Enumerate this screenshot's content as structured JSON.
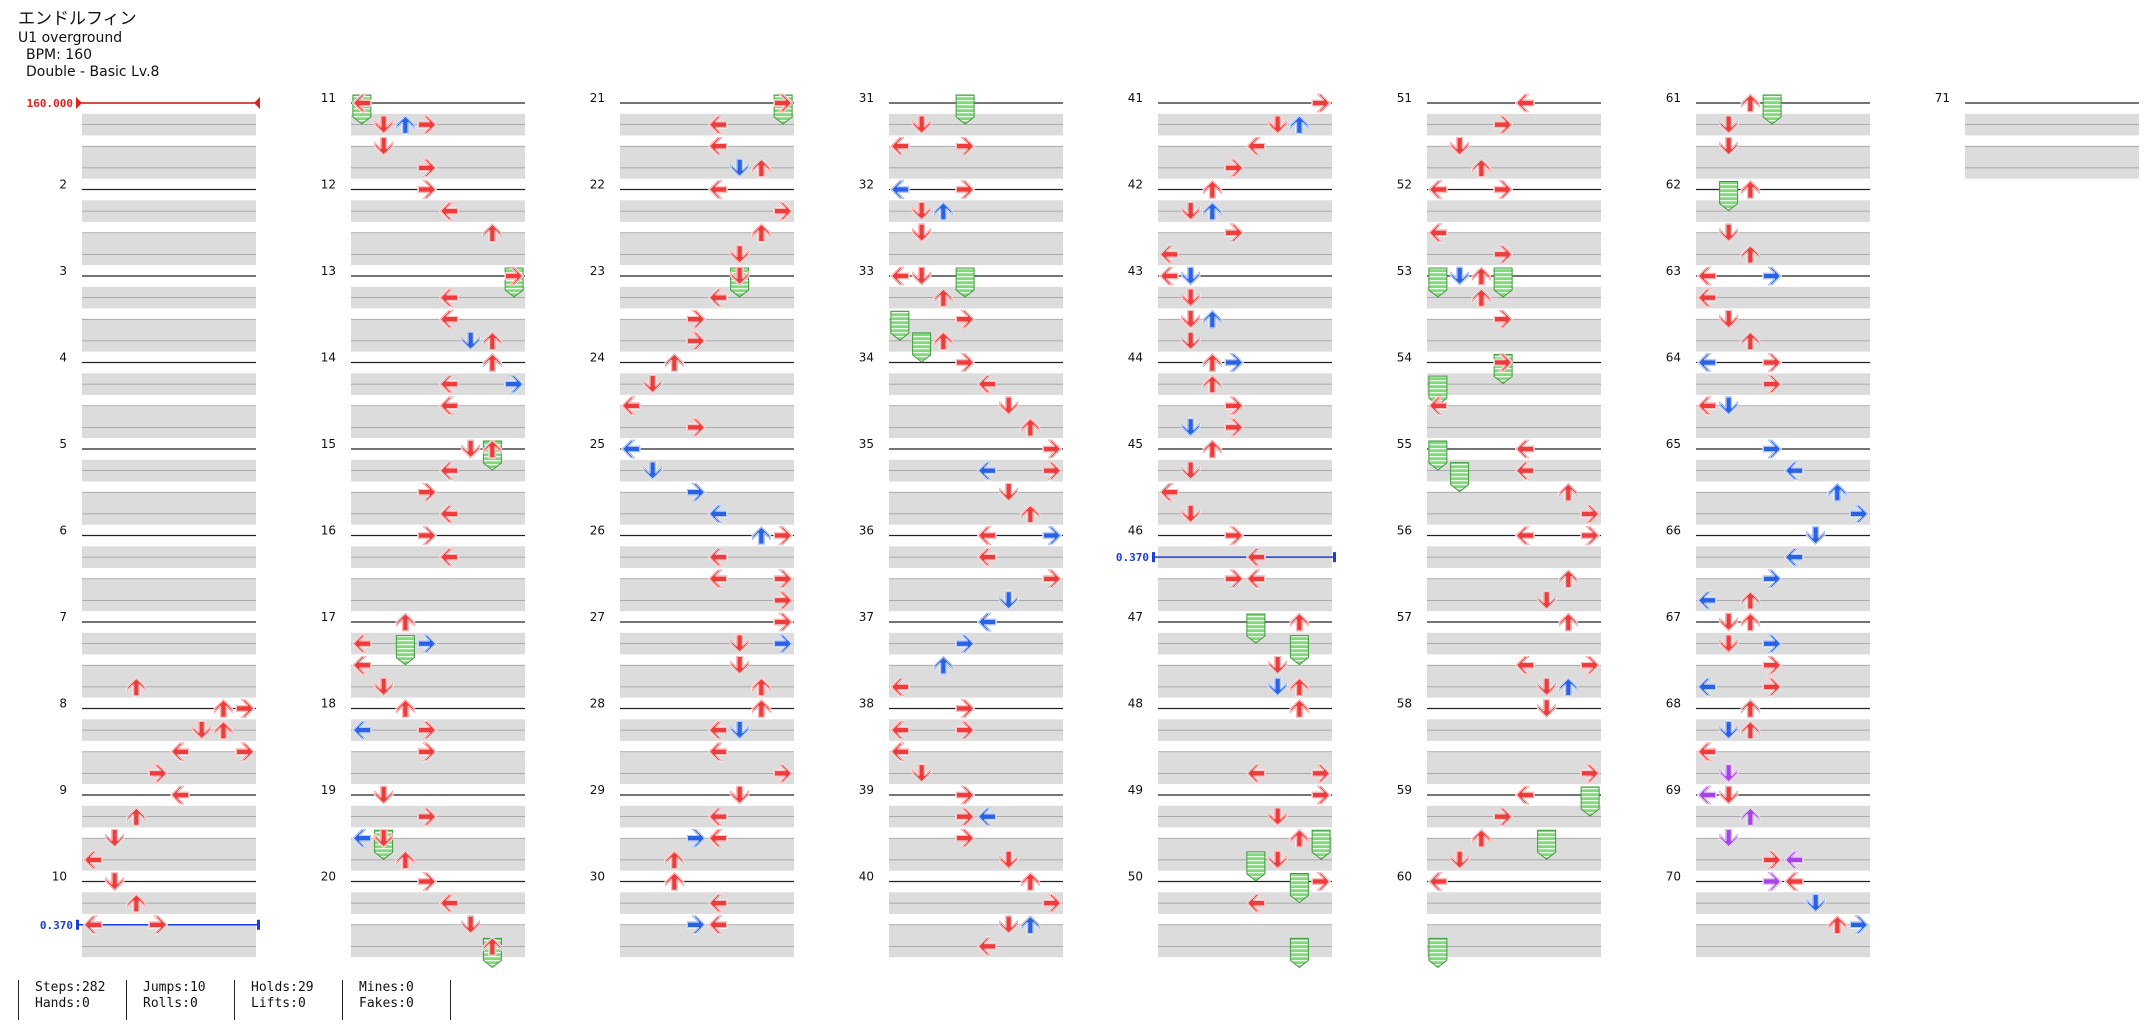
{
  "song": {
    "title": "エンドルフィン",
    "subtitle": "U1 overground",
    "bpm_text": "BPM: 160",
    "difficulty_text": "Double - Basic  Lv.8"
  },
  "colors": {
    "red": "#ee3b3b",
    "blue": "#2a62e6",
    "purple": "#a644ea",
    "hold_green": "#7fdb78",
    "row_gray": "#dcdcdc",
    "bpm_red": "#dd2222",
    "stop_blue": "#1a3cd8"
  },
  "changes": [
    {
      "type": "bpm",
      "label": "160.000",
      "measure": 1,
      "beat": 0,
      "color": "#dd2222"
    },
    {
      "type": "stop",
      "label": "0.370",
      "measure": 10,
      "beat": 2,
      "color": "#1a3cd8"
    },
    {
      "type": "stop",
      "label": "0.370",
      "measure": 46,
      "beat": 1,
      "color": "#1a3cd8"
    }
  ],
  "measure_numbers": [
    "2",
    "3",
    "4",
    "5",
    "6",
    "7",
    "8",
    "9",
    "10",
    "11",
    "12",
    "13",
    "14",
    "15",
    "16",
    "17",
    "18",
    "19",
    "20",
    "21",
    "22",
    "23",
    "24",
    "25",
    "26",
    "27",
    "28",
    "29",
    "30",
    "31",
    "32",
    "33",
    "34",
    "35",
    "36",
    "37",
    "38",
    "39",
    "40",
    "41",
    "42",
    "43",
    "44",
    "45",
    "46",
    "47",
    "48",
    "49",
    "50",
    "51",
    "52",
    "53",
    "54",
    "55",
    "56",
    "57",
    "58",
    "59",
    "60",
    "61",
    "62",
    "63",
    "64",
    "65",
    "66",
    "67",
    "68",
    "69",
    "70",
    "71"
  ],
  "notes": [
    [
      7,
      3,
      2,
      "r"
    ],
    [
      7,
      4,
      6,
      "r"
    ],
    [
      7,
      5,
      5,
      "r"
    ],
    [
      7,
      6,
      7,
      "r"
    ],
    [
      8,
      0,
      7,
      "r"
    ],
    [
      8,
      1,
      6,
      "r"
    ],
    [
      8,
      2,
      4,
      "r"
    ],
    [
      8,
      3,
      3,
      "r"
    ],
    [
      9,
      0,
      4,
      "r"
    ],
    [
      9,
      1,
      2,
      "r"
    ],
    [
      9,
      2,
      1,
      "r"
    ],
    [
      9,
      3,
      0,
      "r"
    ],
    [
      10,
      0,
      1,
      "r"
    ],
    [
      10,
      1,
      2,
      "r"
    ],
    [
      10,
      2,
      0,
      "r"
    ],
    [
      10,
      2,
      3,
      "r"
    ],
    [
      11,
      0,
      0,
      "r"
    ],
    [
      11,
      1,
      1,
      "r"
    ],
    [
      11,
      1,
      2,
      "b"
    ],
    [
      11,
      1,
      3,
      "r"
    ],
    [
      11,
      2,
      1,
      "r"
    ],
    [
      11,
      3,
      3,
      "r"
    ],
    [
      12,
      0,
      3,
      "r"
    ],
    [
      12,
      1,
      4,
      "r"
    ],
    [
      12,
      2,
      6,
      "r"
    ],
    [
      13,
      0,
      7,
      "r"
    ],
    [
      13,
      1,
      4,
      "r"
    ],
    [
      13,
      2,
      4,
      "r"
    ],
    [
      13,
      3,
      5,
      "b"
    ],
    [
      13,
      3,
      6,
      "r"
    ],
    [
      14,
      0,
      6,
      "r"
    ],
    [
      14,
      1,
      4,
      "r"
    ],
    [
      14,
      1,
      7,
      "b"
    ],
    [
      14,
      2,
      4,
      "r"
    ],
    [
      14,
      4,
      6,
      "r"
    ],
    [
      15,
      0,
      5,
      "r"
    ],
    [
      15,
      1,
      4,
      "r"
    ],
    [
      15,
      2,
      3,
      "r"
    ],
    [
      15,
      3,
      4,
      "r"
    ],
    [
      16,
      0,
      3,
      "r"
    ],
    [
      16,
      1,
      4,
      "r"
    ],
    [
      17,
      0,
      2,
      "r"
    ],
    [
      17,
      1,
      0,
      "r"
    ],
    [
      17,
      1,
      3,
      "b"
    ],
    [
      17,
      2,
      0,
      "r"
    ],
    [
      17,
      3,
      1,
      "r"
    ],
    [
      18,
      0,
      2,
      "r"
    ],
    [
      18,
      1,
      3,
      "r"
    ],
    [
      18,
      1,
      0,
      "b"
    ],
    [
      18,
      2,
      3,
      "r"
    ],
    [
      19,
      0,
      1,
      "r"
    ],
    [
      19,
      1,
      3,
      "r"
    ],
    [
      19,
      2,
      0,
      "b"
    ],
    [
      19,
      2,
      1,
      "r"
    ],
    [
      19,
      3,
      2,
      "r"
    ],
    [
      20,
      0,
      3,
      "r"
    ],
    [
      20,
      1,
      4,
      "r"
    ],
    [
      20,
      2,
      5,
      "r"
    ],
    [
      20,
      3,
      6,
      "r"
    ],
    [
      21,
      0,
      7,
      "r"
    ],
    [
      21,
      1,
      4,
      "r"
    ],
    [
      21,
      2,
      4,
      "r"
    ],
    [
      21,
      3,
      6,
      "r"
    ],
    [
      21,
      3,
      5,
      "b"
    ],
    [
      22,
      0,
      4,
      "r"
    ],
    [
      22,
      1,
      7,
      "r"
    ],
    [
      22,
      2,
      6,
      "r"
    ],
    [
      22,
      3,
      5,
      "r"
    ],
    [
      23,
      0,
      5,
      "r"
    ],
    [
      23,
      1,
      4,
      "r"
    ],
    [
      23,
      2,
      3,
      "r"
    ],
    [
      23,
      3,
      3,
      "r"
    ],
    [
      24,
      0,
      2,
      "r"
    ],
    [
      24,
      1,
      1,
      "r"
    ],
    [
      24,
      2,
      0,
      "r"
    ],
    [
      24,
      3,
      3,
      "r"
    ],
    [
      25,
      0,
      0,
      "b"
    ],
    [
      25,
      1,
      1,
      "b"
    ],
    [
      25,
      2,
      3,
      "b"
    ],
    [
      25,
      3,
      4,
      "b"
    ],
    [
      26,
      0,
      6,
      "b"
    ],
    [
      26,
      0,
      7,
      "r"
    ],
    [
      26,
      1,
      4,
      "r"
    ],
    [
      26,
      2,
      4,
      "r"
    ],
    [
      26,
      2,
      7,
      "r"
    ],
    [
      26,
      3,
      7,
      "r"
    ],
    [
      27,
      0,
      7,
      "r"
    ],
    [
      27,
      1,
      5,
      "r"
    ],
    [
      27,
      1,
      7,
      "b"
    ],
    [
      27,
      2,
      5,
      "r"
    ],
    [
      27,
      3,
      6,
      "r"
    ],
    [
      28,
      0,
      6,
      "r"
    ],
    [
      28,
      1,
      4,
      "r"
    ],
    [
      28,
      1,
      5,
      "b"
    ],
    [
      28,
      2,
      4,
      "r"
    ],
    [
      28,
      3,
      7,
      "r"
    ],
    [
      29,
      0,
      5,
      "r"
    ],
    [
      29,
      1,
      4,
      "r"
    ],
    [
      29,
      2,
      3,
      "b"
    ],
    [
      29,
      2,
      4,
      "r"
    ],
    [
      29,
      3,
      2,
      "r"
    ],
    [
      30,
      0,
      2,
      "r"
    ],
    [
      30,
      1,
      4,
      "r"
    ],
    [
      30,
      2,
      3,
      "b"
    ],
    [
      30,
      2,
      4,
      "r"
    ],
    [
      31,
      1,
      1,
      "r"
    ],
    [
      31,
      2,
      0,
      "r"
    ],
    [
      31,
      2,
      3,
      "r"
    ],
    [
      32,
      0,
      0,
      "b"
    ],
    [
      32,
      0,
      3,
      "r"
    ],
    [
      32,
      1,
      1,
      "r"
    ],
    [
      32,
      1,
      2,
      "b"
    ],
    [
      32,
      2,
      1,
      "r"
    ],
    [
      33,
      0,
      0,
      "r"
    ],
    [
      33,
      0,
      1,
      "r"
    ],
    [
      33,
      1,
      2,
      "r"
    ],
    [
      33,
      2,
      3,
      "r"
    ],
    [
      33,
      3,
      2,
      "r"
    ],
    [
      34,
      0,
      3,
      "r"
    ],
    [
      34,
      1,
      4,
      "r"
    ],
    [
      34,
      2,
      5,
      "r"
    ],
    [
      34,
      3,
      6,
      "r"
    ],
    [
      35,
      0,
      7,
      "r"
    ],
    [
      35,
      1,
      4,
      "b"
    ],
    [
      35,
      1,
      7,
      "r"
    ],
    [
      35,
      2,
      5,
      "r"
    ],
    [
      35,
      3,
      6,
      "r"
    ],
    [
      36,
      0,
      4,
      "r"
    ],
    [
      36,
      0,
      7,
      "b"
    ],
    [
      36,
      1,
      4,
      "r"
    ],
    [
      36,
      2,
      7,
      "r"
    ],
    [
      36,
      3,
      5,
      "b"
    ],
    [
      37,
      0,
      4,
      "b"
    ],
    [
      37,
      1,
      3,
      "b"
    ],
    [
      37,
      2,
      2,
      "b"
    ],
    [
      37,
      3,
      0,
      "b"
    ],
    [
      37,
      3,
      0,
      "r"
    ],
    [
      38,
      0,
      3,
      "r"
    ],
    [
      38,
      1,
      0,
      "r"
    ],
    [
      38,
      1,
      3,
      "r"
    ],
    [
      38,
      2,
      0,
      "r"
    ],
    [
      38,
      3,
      1,
      "r"
    ],
    [
      39,
      0,
      3,
      "r"
    ],
    [
      39,
      1,
      3,
      "r"
    ],
    [
      39,
      1,
      4,
      "b"
    ],
    [
      39,
      2,
      3,
      "r"
    ],
    [
      39,
      3,
      5,
      "r"
    ],
    [
      40,
      0,
      6,
      "r"
    ],
    [
      40,
      1,
      7,
      "r"
    ],
    [
      40,
      2,
      6,
      "b"
    ],
    [
      40,
      2,
      5,
      "r"
    ],
    [
      40,
      3,
      4,
      "r"
    ],
    [
      41,
      0,
      7,
      "r"
    ],
    [
      41,
      1,
      5,
      "r"
    ],
    [
      41,
      1,
      6,
      "b"
    ],
    [
      41,
      2,
      4,
      "r"
    ],
    [
      41,
      3,
      3,
      "r"
    ],
    [
      42,
      0,
      2,
      "r"
    ],
    [
      42,
      1,
      1,
      "r"
    ],
    [
      42,
      1,
      2,
      "b"
    ],
    [
      42,
      2,
      3,
      "r"
    ],
    [
      42,
      3,
      0,
      "r"
    ],
    [
      43,
      0,
      0,
      "r"
    ],
    [
      43,
      0,
      1,
      "b"
    ],
    [
      43,
      1,
      1,
      "r"
    ],
    [
      43,
      2,
      1,
      "r"
    ],
    [
      43,
      2,
      2,
      "b"
    ],
    [
      43,
      3,
      1,
      "r"
    ],
    [
      44,
      0,
      2,
      "r"
    ],
    [
      44,
      0,
      3,
      "b"
    ],
    [
      44,
      1,
      2,
      "r"
    ],
    [
      44,
      2,
      3,
      "r"
    ],
    [
      44,
      3,
      1,
      "b"
    ],
    [
      44,
      3,
      3,
      "r"
    ],
    [
      45,
      0,
      2,
      "r"
    ],
    [
      45,
      1,
      1,
      "r"
    ],
    [
      45,
      2,
      0,
      "r"
    ],
    [
      45,
      3,
      1,
      "r"
    ],
    [
      46,
      0,
      3,
      "r"
    ],
    [
      46,
      1,
      4,
      "r"
    ],
    [
      46,
      2,
      3,
      "r"
    ],
    [
      46,
      2,
      4,
      "r"
    ],
    [
      47,
      0,
      6,
      "r"
    ],
    [
      47,
      2,
      5,
      "r"
    ],
    [
      47,
      3,
      5,
      "b"
    ],
    [
      47,
      3,
      6,
      "r"
    ],
    [
      48,
      0,
      6,
      "r"
    ],
    [
      48,
      3,
      4,
      "r"
    ],
    [
      48,
      3,
      7,
      "r"
    ],
    [
      49,
      0,
      7,
      "r"
    ],
    [
      49,
      1,
      5,
      "r"
    ],
    [
      49,
      2,
      6,
      "r"
    ],
    [
      49,
      3,
      5,
      "r"
    ],
    [
      50,
      0,
      7,
      "r"
    ],
    [
      50,
      1,
      4,
      "r"
    ],
    [
      51,
      0,
      4,
      "r"
    ],
    [
      51,
      1,
      3,
      "r"
    ],
    [
      51,
      2,
      1,
      "r"
    ],
    [
      51,
      3,
      2,
      "r"
    ],
    [
      52,
      0,
      0,
      "r"
    ],
    [
      52,
      0,
      3,
      "r"
    ],
    [
      52,
      2,
      0,
      "r"
    ],
    [
      52,
      3,
      3,
      "r"
    ],
    [
      53,
      0,
      1,
      "b"
    ],
    [
      53,
      0,
      2,
      "r"
    ],
    [
      53,
      1,
      2,
      "r"
    ],
    [
      53,
      2,
      3,
      "r"
    ],
    [
      54,
      0,
      3,
      "r"
    ],
    [
      54,
      2,
      0,
      "r"
    ],
    [
      55,
      0,
      4,
      "r"
    ],
    [
      55,
      1,
      4,
      "r"
    ],
    [
      55,
      2,
      6,
      "r"
    ],
    [
      55,
      3,
      7,
      "r"
    ],
    [
      56,
      0,
      4,
      "r"
    ],
    [
      56,
      0,
      7,
      "r"
    ],
    [
      56,
      2,
      6,
      "r"
    ],
    [
      56,
      3,
      5,
      "r"
    ],
    [
      57,
      0,
      6,
      "r"
    ],
    [
      57,
      2,
      4,
      "r"
    ],
    [
      57,
      2,
      7,
      "r"
    ],
    [
      57,
      3,
      5,
      "r"
    ],
    [
      57,
      3,
      6,
      "b"
    ],
    [
      58,
      0,
      5,
      "r"
    ],
    [
      58,
      3,
      7,
      "r"
    ],
    [
      59,
      0,
      4,
      "r"
    ],
    [
      59,
      1,
      3,
      "r"
    ],
    [
      59,
      2,
      2,
      "r"
    ],
    [
      59,
      3,
      1,
      "r"
    ],
    [
      60,
      0,
      0,
      "r"
    ],
    [
      61,
      0,
      2,
      "r"
    ],
    [
      61,
      1,
      1,
      "r"
    ],
    [
      61,
      2,
      1,
      "r"
    ],
    [
      62,
      0,
      2,
      "r"
    ],
    [
      62,
      2,
      1,
      "r"
    ],
    [
      62,
      3,
      2,
      "r"
    ],
    [
      63,
      0,
      0,
      "r"
    ],
    [
      63,
      0,
      3,
      "b"
    ],
    [
      63,
      1,
      0,
      "r"
    ],
    [
      63,
      2,
      1,
      "r"
    ],
    [
      63,
      3,
      2,
      "r"
    ],
    [
      64,
      0,
      3,
      "r"
    ],
    [
      64,
      0,
      0,
      "b"
    ],
    [
      64,
      1,
      3,
      "r"
    ],
    [
      64,
      2,
      0,
      "r"
    ],
    [
      64,
      2,
      1,
      "b"
    ],
    [
      65,
      0,
      3,
      "b"
    ],
    [
      65,
      1,
      4,
      "b"
    ],
    [
      65,
      2,
      6,
      "b"
    ],
    [
      65,
      3,
      7,
      "b"
    ],
    [
      66,
      0,
      5,
      "b"
    ],
    [
      66,
      1,
      4,
      "b"
    ],
    [
      66,
      2,
      3,
      "b"
    ],
    [
      66,
      3,
      2,
      "r"
    ],
    [
      66,
      3,
      0,
      "b"
    ],
    [
      67,
      0,
      2,
      "r"
    ],
    [
      67,
      0,
      1,
      "r"
    ],
    [
      67,
      1,
      3,
      "b"
    ],
    [
      67,
      1,
      1,
      "r"
    ],
    [
      67,
      2,
      3,
      "r"
    ],
    [
      67,
      3,
      0,
      "b"
    ],
    [
      67,
      3,
      3,
      "r"
    ],
    [
      68,
      0,
      2,
      "r"
    ],
    [
      68,
      1,
      1,
      "b"
    ],
    [
      68,
      1,
      2,
      "r"
    ],
    [
      68,
      2,
      0,
      "r"
    ],
    [
      68,
      3,
      1,
      "p"
    ],
    [
      69,
      0,
      0,
      "p"
    ],
    [
      69,
      0,
      1,
      "r"
    ],
    [
      69,
      1,
      2,
      "p"
    ],
    [
      69,
      2,
      1,
      "p"
    ],
    [
      69,
      3,
      3,
      "r"
    ],
    [
      69,
      3,
      4,
      "p"
    ],
    [
      70,
      0,
      3,
      "p"
    ],
    [
      70,
      0,
      4,
      "r"
    ],
    [
      70,
      1,
      5,
      "b"
    ],
    [
      70,
      2,
      6,
      "r"
    ],
    [
      70,
      2,
      7,
      "b"
    ]
  ],
  "holds": [
    [
      11,
      0,
      0,
      0.5
    ],
    [
      13,
      0,
      7,
      0.5
    ],
    [
      15,
      0,
      6,
      0.5
    ],
    [
      17,
      1,
      2,
      0.5
    ],
    [
      19,
      2,
      1,
      0.5
    ],
    [
      20,
      3,
      6,
      0.5
    ],
    [
      21,
      0,
      7,
      0.5
    ],
    [
      23,
      0,
      5,
      0.5
    ],
    [
      31,
      0,
      3,
      0.5
    ],
    [
      33,
      0,
      3,
      0.5
    ],
    [
      33,
      2,
      0,
      0.5
    ],
    [
      33,
      3,
      1,
      0.5
    ],
    [
      47,
      0,
      4,
      0.5
    ],
    [
      47,
      1,
      6,
      0.5
    ],
    [
      49,
      2,
      7,
      0.5
    ],
    [
      49,
      3,
      4,
      0.5
    ],
    [
      50,
      0,
      6,
      0.5
    ],
    [
      50,
      3,
      6,
      0.5
    ],
    [
      53,
      0,
      0,
      0.5
    ],
    [
      53,
      0,
      3,
      0.5
    ],
    [
      54,
      0,
      3,
      0.5
    ],
    [
      54,
      1,
      0,
      0.5
    ],
    [
      55,
      0,
      0,
      0.5
    ],
    [
      55,
      1,
      1,
      0.5
    ],
    [
      59,
      0,
      7,
      0.5
    ],
    [
      59,
      2,
      5,
      0.5
    ],
    [
      60,
      3,
      0,
      0.5
    ],
    [
      61,
      0,
      3,
      0.5
    ],
    [
      62,
      0,
      1,
      0.5
    ]
  ],
  "stats": {
    "col1": [
      "Steps:282",
      "Hands:0"
    ],
    "col2": [
      "Jumps:10",
      "Rolls:0"
    ],
    "col3": [
      "Holds:29",
      "Lifts:0"
    ],
    "col4": [
      "Mines:0",
      "Fakes:0"
    ]
  }
}
